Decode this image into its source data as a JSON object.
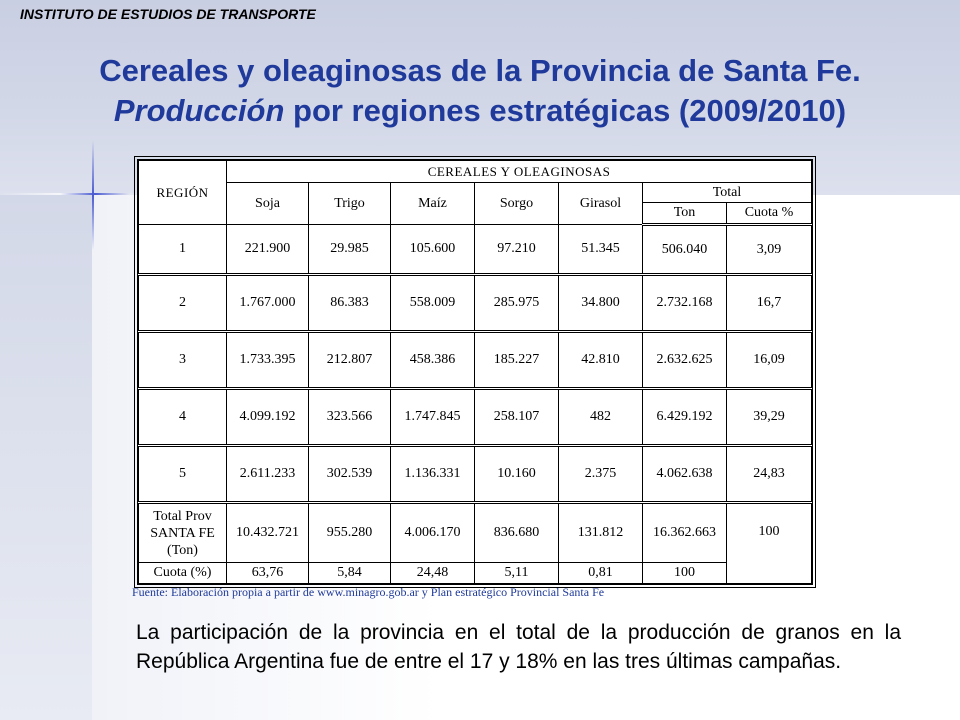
{
  "header": {
    "institute": "INSTITUTO DE ESTUDIOS DE TRANSPORTE",
    "title_line1": "Cereales y oleaginosas de la Provincia de Santa Fe.",
    "title_line2_italic": "Producción",
    "title_line2_rest": " por regiones estratégicas (2009/2010)"
  },
  "table": {
    "region_header": "REGIÓN",
    "group_header": "CEREALES Y OLEAGINOSAS",
    "columns": [
      "Soja",
      "Trigo",
      "Maíz",
      "Sorgo",
      "Girasol"
    ],
    "total_header": "Total",
    "total_subcolumns": [
      "Ton",
      "Cuota %"
    ],
    "rows": [
      {
        "region": "1",
        "values": [
          "221.900",
          "29.985",
          "105.600",
          "97.210",
          "51.345"
        ],
        "ton": "506.040",
        "cuota": "3,09"
      },
      {
        "region": "2",
        "values": [
          "1.767.000",
          "86.383",
          "558.009",
          "285.975",
          "34.800"
        ],
        "ton": "2.732.168",
        "cuota": "16,7"
      },
      {
        "region": "3",
        "values": [
          "1.733.395",
          "212.807",
          "458.386",
          "185.227",
          "42.810"
        ],
        "ton": "2.632.625",
        "cuota": "16,09"
      },
      {
        "region": "4",
        "values": [
          "4.099.192",
          "323.566",
          "1.747.845",
          "258.107",
          "482"
        ],
        "ton": "6.429.192",
        "cuota": "39,29"
      },
      {
        "region": "5",
        "values": [
          "2.611.233",
          "302.539",
          "1.136.331",
          "10.160",
          "2.375"
        ],
        "ton": "4.062.638",
        "cuota": "24,83"
      }
    ],
    "total_row": {
      "label_line1": "Total Prov",
      "label_line2": "SANTA FE",
      "label_line3": "(Ton)",
      "values": [
        "10.432.721",
        "955.280",
        "4.006.170",
        "836.680",
        "131.812"
      ],
      "ton": "16.362.663",
      "cuota": "100"
    },
    "cuota_row": {
      "label": "Cuota (%)",
      "values": [
        "63,76",
        "5,84",
        "24,48",
        "5,11",
        "0,81"
      ],
      "ton": "100"
    }
  },
  "source": "Fuente: Elaboración propia a partir de www.minagro.gob.ar y Plan estratégico Provincial Santa Fe",
  "paragraph": "La participación de la provincia en el total de la producción de granos en la República Argentina fue de entre el 17 y 18% en las tres últimas campañas.",
  "colors": {
    "title": "#1f3a9a",
    "source": "#1f3a9a",
    "band": "#c9cfe2"
  }
}
